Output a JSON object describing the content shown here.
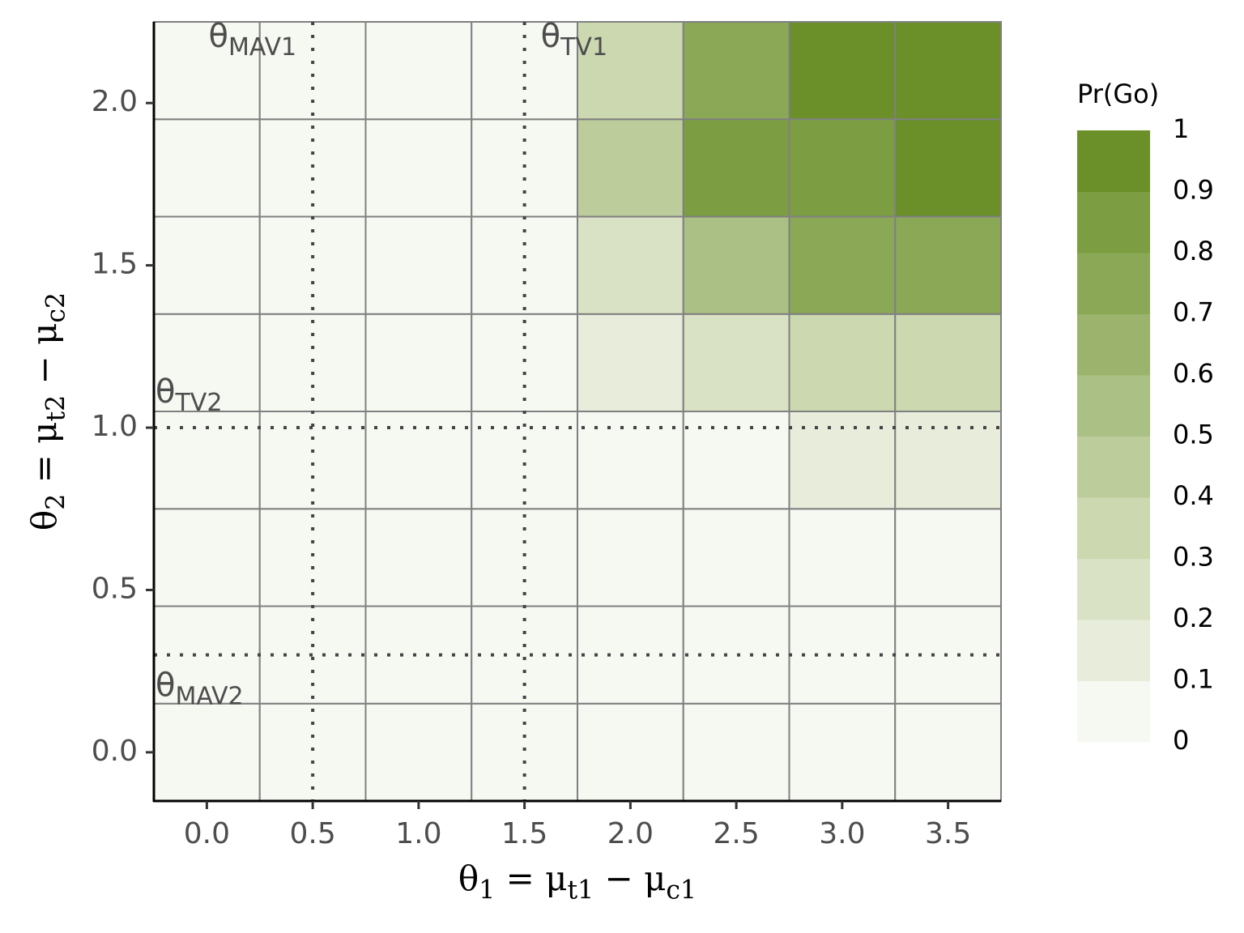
{
  "chart_data": {
    "type": "heatmap",
    "x": [
      0,
      0.5,
      1,
      1.5,
      2,
      2.5,
      3,
      3.5
    ],
    "y": [
      0,
      0.3,
      0.6,
      0.9,
      1.2,
      1.5,
      1.8,
      2.1
    ],
    "z": [
      [
        0.02,
        0.02,
        0.02,
        0.02,
        0.02,
        0.02,
        0.02,
        0.02
      ],
      [
        0.02,
        0.02,
        0.02,
        0.02,
        0.02,
        0.02,
        0.02,
        0.02
      ],
      [
        0.02,
        0.02,
        0.02,
        0.02,
        0.02,
        0.02,
        0.02,
        0.02
      ],
      [
        0.02,
        0.02,
        0.02,
        0.02,
        0.02,
        0.02,
        0.15,
        0.15
      ],
      [
        0.02,
        0.02,
        0.02,
        0.02,
        0.15,
        0.25,
        0.35,
        0.35
      ],
      [
        0.02,
        0.02,
        0.02,
        0.02,
        0.25,
        0.55,
        0.75,
        0.75
      ],
      [
        0.02,
        0.02,
        0.02,
        0.02,
        0.45,
        0.8,
        0.85,
        0.95
      ],
      [
        0.02,
        0.02,
        0.02,
        0.02,
        0.35,
        0.75,
        0.95,
        0.95
      ]
    ],
    "xlim": [
      -0.25,
      3.75
    ],
    "ylim": [
      -0.15,
      2.25
    ],
    "xticks": [
      {
        "value": 0,
        "label": "0.0"
      },
      0.5,
      {
        "value": 1,
        "label": "1.0"
      },
      1.5,
      {
        "value": 2,
        "label": "2.0"
      },
      2.5,
      {
        "value": 3,
        "label": "3.0"
      },
      3.5
    ],
    "yticks": [
      {
        "value": 0,
        "label": "0.0"
      },
      0.5,
      {
        "value": 1,
        "label": "1.0"
      },
      1.5,
      {
        "value": 2,
        "label": "2.0"
      }
    ],
    "x_label": [
      {
        "t": "θ"
      },
      {
        "s": "1"
      },
      {
        "t": " = μ"
      },
      {
        "s": "t1"
      },
      {
        "t": " − μ"
      },
      {
        "s": "c1"
      }
    ],
    "y_label": [
      {
        "t": "θ"
      },
      {
        "s": "2"
      },
      {
        "t": " = μ"
      },
      {
        "s": "t2"
      },
      {
        "t": " − μ"
      },
      {
        "s": "c2"
      }
    ],
    "vlines": [
      {
        "value": 0.5,
        "label": [
          {
            "t": "θ"
          },
          {
            "s": "MAV1"
          }
        ]
      },
      {
        "value": 1.5,
        "label": [
          {
            "t": "θ"
          },
          {
            "s": "TV1"
          }
        ]
      }
    ],
    "hlines": [
      {
        "value": 1,
        "label": [
          {
            "t": "θ"
          },
          {
            "s": "TV2"
          }
        ]
      },
      {
        "value": 0.3,
        "label": [
          {
            "t": "θ"
          },
          {
            "s": "MAV2"
          }
        ]
      }
    ],
    "legend_title": "Pr(Go)",
    "legend_ticks": [
      0,
      0.1,
      0.2,
      0.3,
      0.4,
      0.5,
      0.6,
      0.7,
      0.8,
      0.9,
      1
    ],
    "palette": [
      "#f6f8f2",
      "#e8ecdb",
      "#d9e2c4",
      "#cbd8b0",
      "#bccd9b",
      "#abc084",
      "#9bb36d",
      "#8ba857",
      "#7c9d41",
      "#6b902a"
    ],
    "cell_border": "#808080"
  }
}
